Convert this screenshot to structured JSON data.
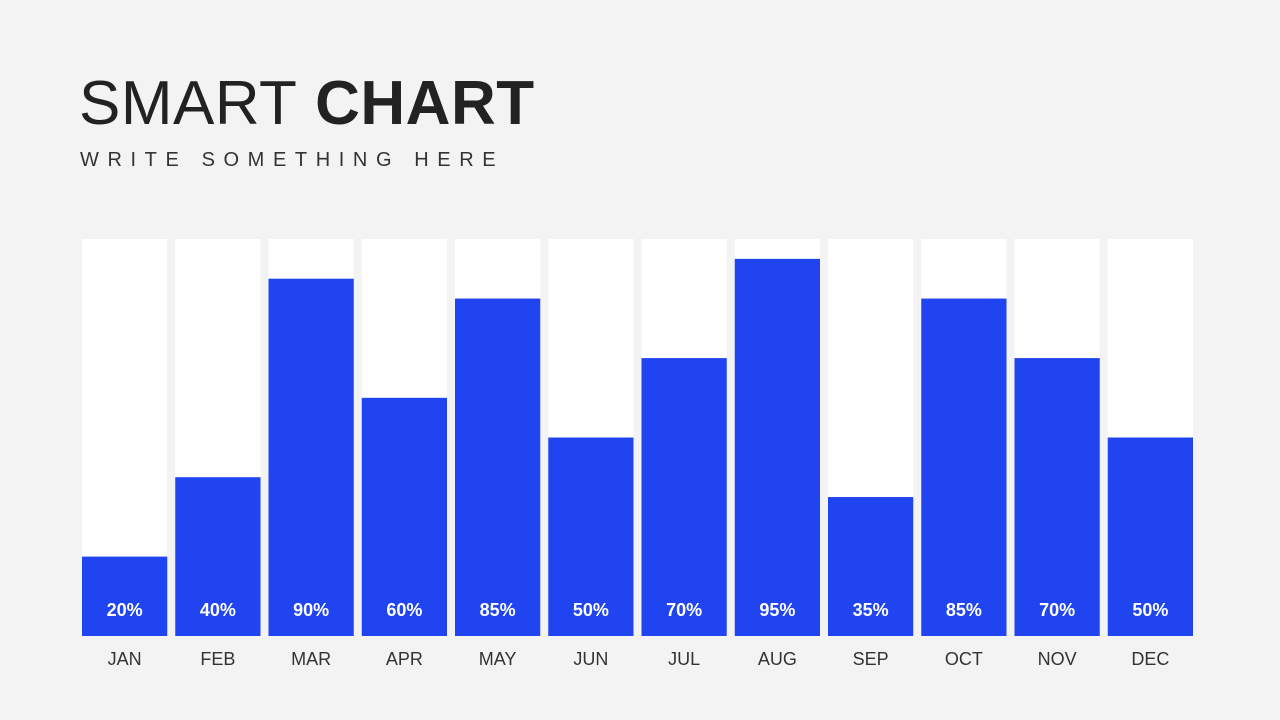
{
  "header": {
    "title_light": "SMART",
    "title_bold": "CHART",
    "subtitle": "WRITE SOMETHING HERE"
  },
  "colors": {
    "bar_fill": "#1f44f0",
    "bar_track": "#ffffff",
    "background": "#f3f3f3",
    "value_label": "#ffffff",
    "category_label": "#333333"
  },
  "chart_data": {
    "type": "bar",
    "categories": [
      "JAN",
      "FEB",
      "MAR",
      "APR",
      "MAY",
      "JUN",
      "JUL",
      "AUG",
      "SEP",
      "OCT",
      "NOV",
      "DEC"
    ],
    "values": [
      20,
      40,
      90,
      60,
      85,
      50,
      70,
      95,
      35,
      85,
      70,
      50
    ],
    "value_labels": [
      "20%",
      "40%",
      "90%",
      "60%",
      "85%",
      "50%",
      "70%",
      "95%",
      "35%",
      "85%",
      "70%",
      "50%"
    ],
    "ylim": [
      0,
      100
    ],
    "grid": false,
    "legend": "none"
  }
}
